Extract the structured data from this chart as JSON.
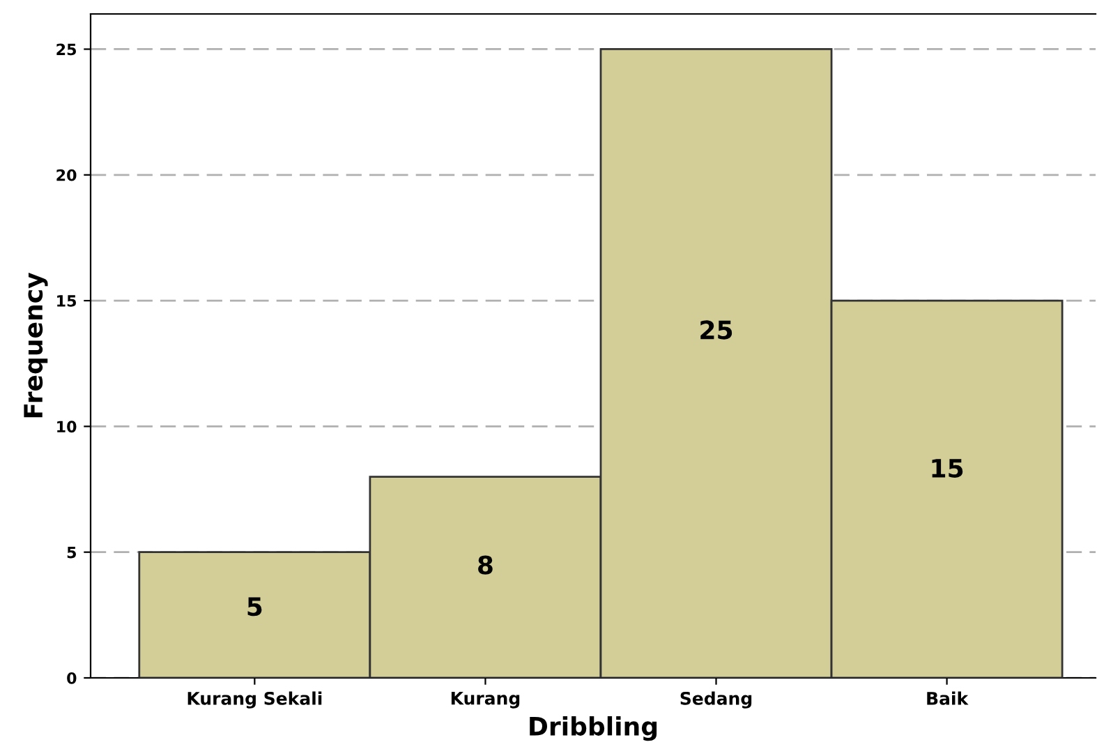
{
  "chart_data": {
    "type": "bar",
    "xlabel": "Dribbling",
    "ylabel": "Frequency",
    "categories": [
      "Kurang Sekali",
      "Kurang",
      "Sedang",
      "Baik"
    ],
    "values": [
      5,
      8,
      25,
      15
    ],
    "color": "#d3ce97",
    "ylim": [
      0,
      26.4
    ],
    "yticks": [
      0,
      5,
      10,
      15,
      20,
      25
    ],
    "grid": "y",
    "data_labels": true
  }
}
